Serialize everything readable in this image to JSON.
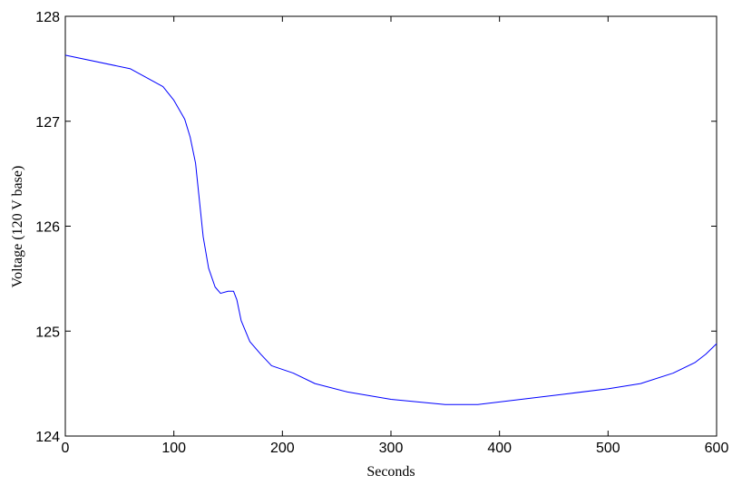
{
  "chart_data": {
    "type": "line",
    "xlabel": "Seconds",
    "ylabel": "Voltage (120 V base)",
    "x": [
      0,
      60,
      90,
      100,
      110,
      115,
      120,
      123,
      127,
      132,
      138,
      143,
      150,
      155,
      158,
      162,
      170,
      180,
      190,
      210,
      230,
      260,
      300,
      350,
      380,
      420,
      460,
      500,
      530,
      560,
      580,
      590,
      600
    ],
    "values": [
      127.63,
      127.5,
      127.33,
      127.2,
      127.02,
      126.85,
      126.6,
      126.3,
      125.9,
      125.6,
      125.42,
      125.36,
      125.38,
      125.38,
      125.3,
      125.1,
      124.9,
      124.78,
      124.67,
      124.6,
      124.5,
      124.42,
      124.35,
      124.3,
      124.3,
      124.35,
      124.4,
      124.45,
      124.5,
      124.6,
      124.7,
      124.78,
      124.88
    ],
    "color": "#0000ff",
    "xlim": [
      0,
      600
    ],
    "xticks": [
      0,
      100,
      200,
      300,
      400,
      500,
      600
    ],
    "ylim": [
      124,
      128
    ],
    "yticks": [
      124,
      125,
      126,
      127,
      128
    ],
    "grid": false
  }
}
